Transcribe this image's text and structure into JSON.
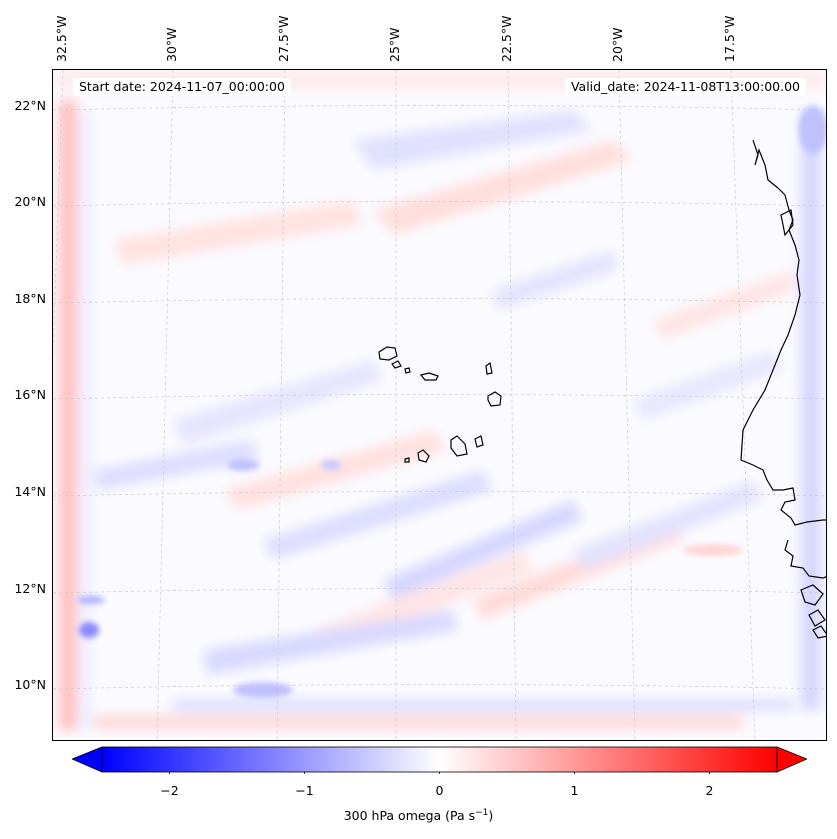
{
  "map": {
    "start_date": "Start date: 2024-11-07_00:00:00",
    "valid_date": "Valid_date: 2024-11-08T13:00:00.00",
    "lon_labels": [
      "32.5°W",
      "30°W",
      "27.5°W",
      "25°W",
      "22.5°W",
      "20°W",
      "17.5°W"
    ],
    "lat_labels": [
      "22°N",
      "20°N",
      "18°N",
      "16°N",
      "14°N",
      "12°N",
      "10°N"
    ],
    "gridlines": true,
    "colormap": "bwr",
    "colors": {
      "negative": "#0000ff",
      "zero": "#ffffff",
      "positive": "#ff0000",
      "coast": "#000000",
      "grid": "#c8c8c8"
    }
  },
  "colorbar": {
    "label": "300 hPa omega (Pa s",
    "label_sup": "−1",
    "label_end": ")",
    "ticks": [
      "−2",
      "−1",
      "0",
      "1",
      "2"
    ],
    "tick_values": [
      -2,
      -1,
      0,
      1,
      2
    ],
    "range": [
      -2.5,
      2.5
    ],
    "extend": "both"
  }
}
